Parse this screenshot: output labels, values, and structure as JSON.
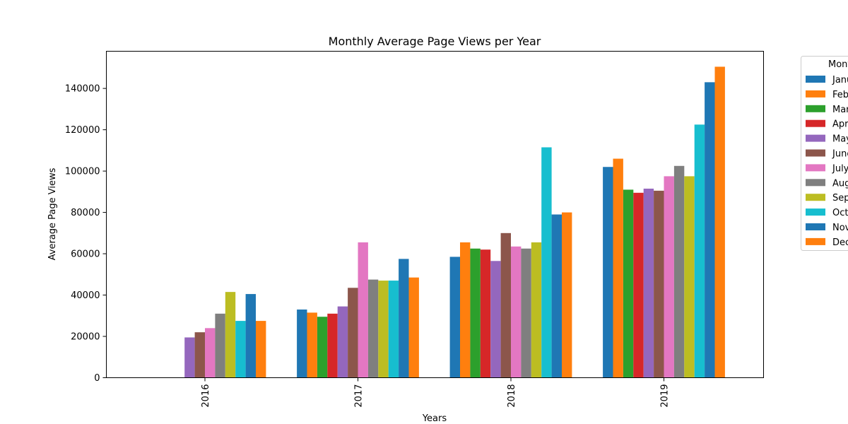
{
  "chart_data": {
    "type": "bar",
    "title": "Monthly Average Page Views per Year",
    "xlabel": "Years",
    "ylabel": "Average Page Views",
    "categories": [
      "2016",
      "2017",
      "2018",
      "2019"
    ],
    "ylim": [
      0,
      158000
    ],
    "yticks": [
      0,
      20000,
      40000,
      60000,
      80000,
      100000,
      120000,
      140000
    ],
    "grid": false,
    "legend": {
      "title": "Months",
      "placement": "outside-right"
    },
    "series": [
      {
        "name": "January",
        "color": "#1f77b4",
        "values": [
          null,
          33000,
          58500,
          102000
        ]
      },
      {
        "name": "February",
        "color": "#ff7f0e",
        "values": [
          null,
          31500,
          65500,
          106000
        ]
      },
      {
        "name": "March",
        "color": "#2ca02c",
        "values": [
          null,
          29500,
          62500,
          91000
        ]
      },
      {
        "name": "April",
        "color": "#d62728",
        "values": [
          null,
          31000,
          62000,
          89500
        ]
      },
      {
        "name": "May",
        "color": "#9467bd",
        "values": [
          19500,
          34500,
          56500,
          91500
        ]
      },
      {
        "name": "June",
        "color": "#8c564b",
        "values": [
          22000,
          43500,
          70000,
          90500
        ]
      },
      {
        "name": "July",
        "color": "#e377c2",
        "values": [
          24000,
          65500,
          63500,
          97500
        ]
      },
      {
        "name": "August",
        "color": "#7f7f7f",
        "values": [
          31000,
          47500,
          62500,
          102500
        ]
      },
      {
        "name": "September",
        "color": "#bcbd22",
        "values": [
          41500,
          47000,
          65500,
          97500
        ]
      },
      {
        "name": "October",
        "color": "#17becf",
        "values": [
          27500,
          47000,
          111500,
          122500
        ]
      },
      {
        "name": "November",
        "color": "#1f77b4",
        "values": [
          40500,
          57500,
          79000,
          143000
        ]
      },
      {
        "name": "December",
        "color": "#ff7f0e",
        "values": [
          27500,
          48500,
          80000,
          150500
        ]
      }
    ]
  }
}
